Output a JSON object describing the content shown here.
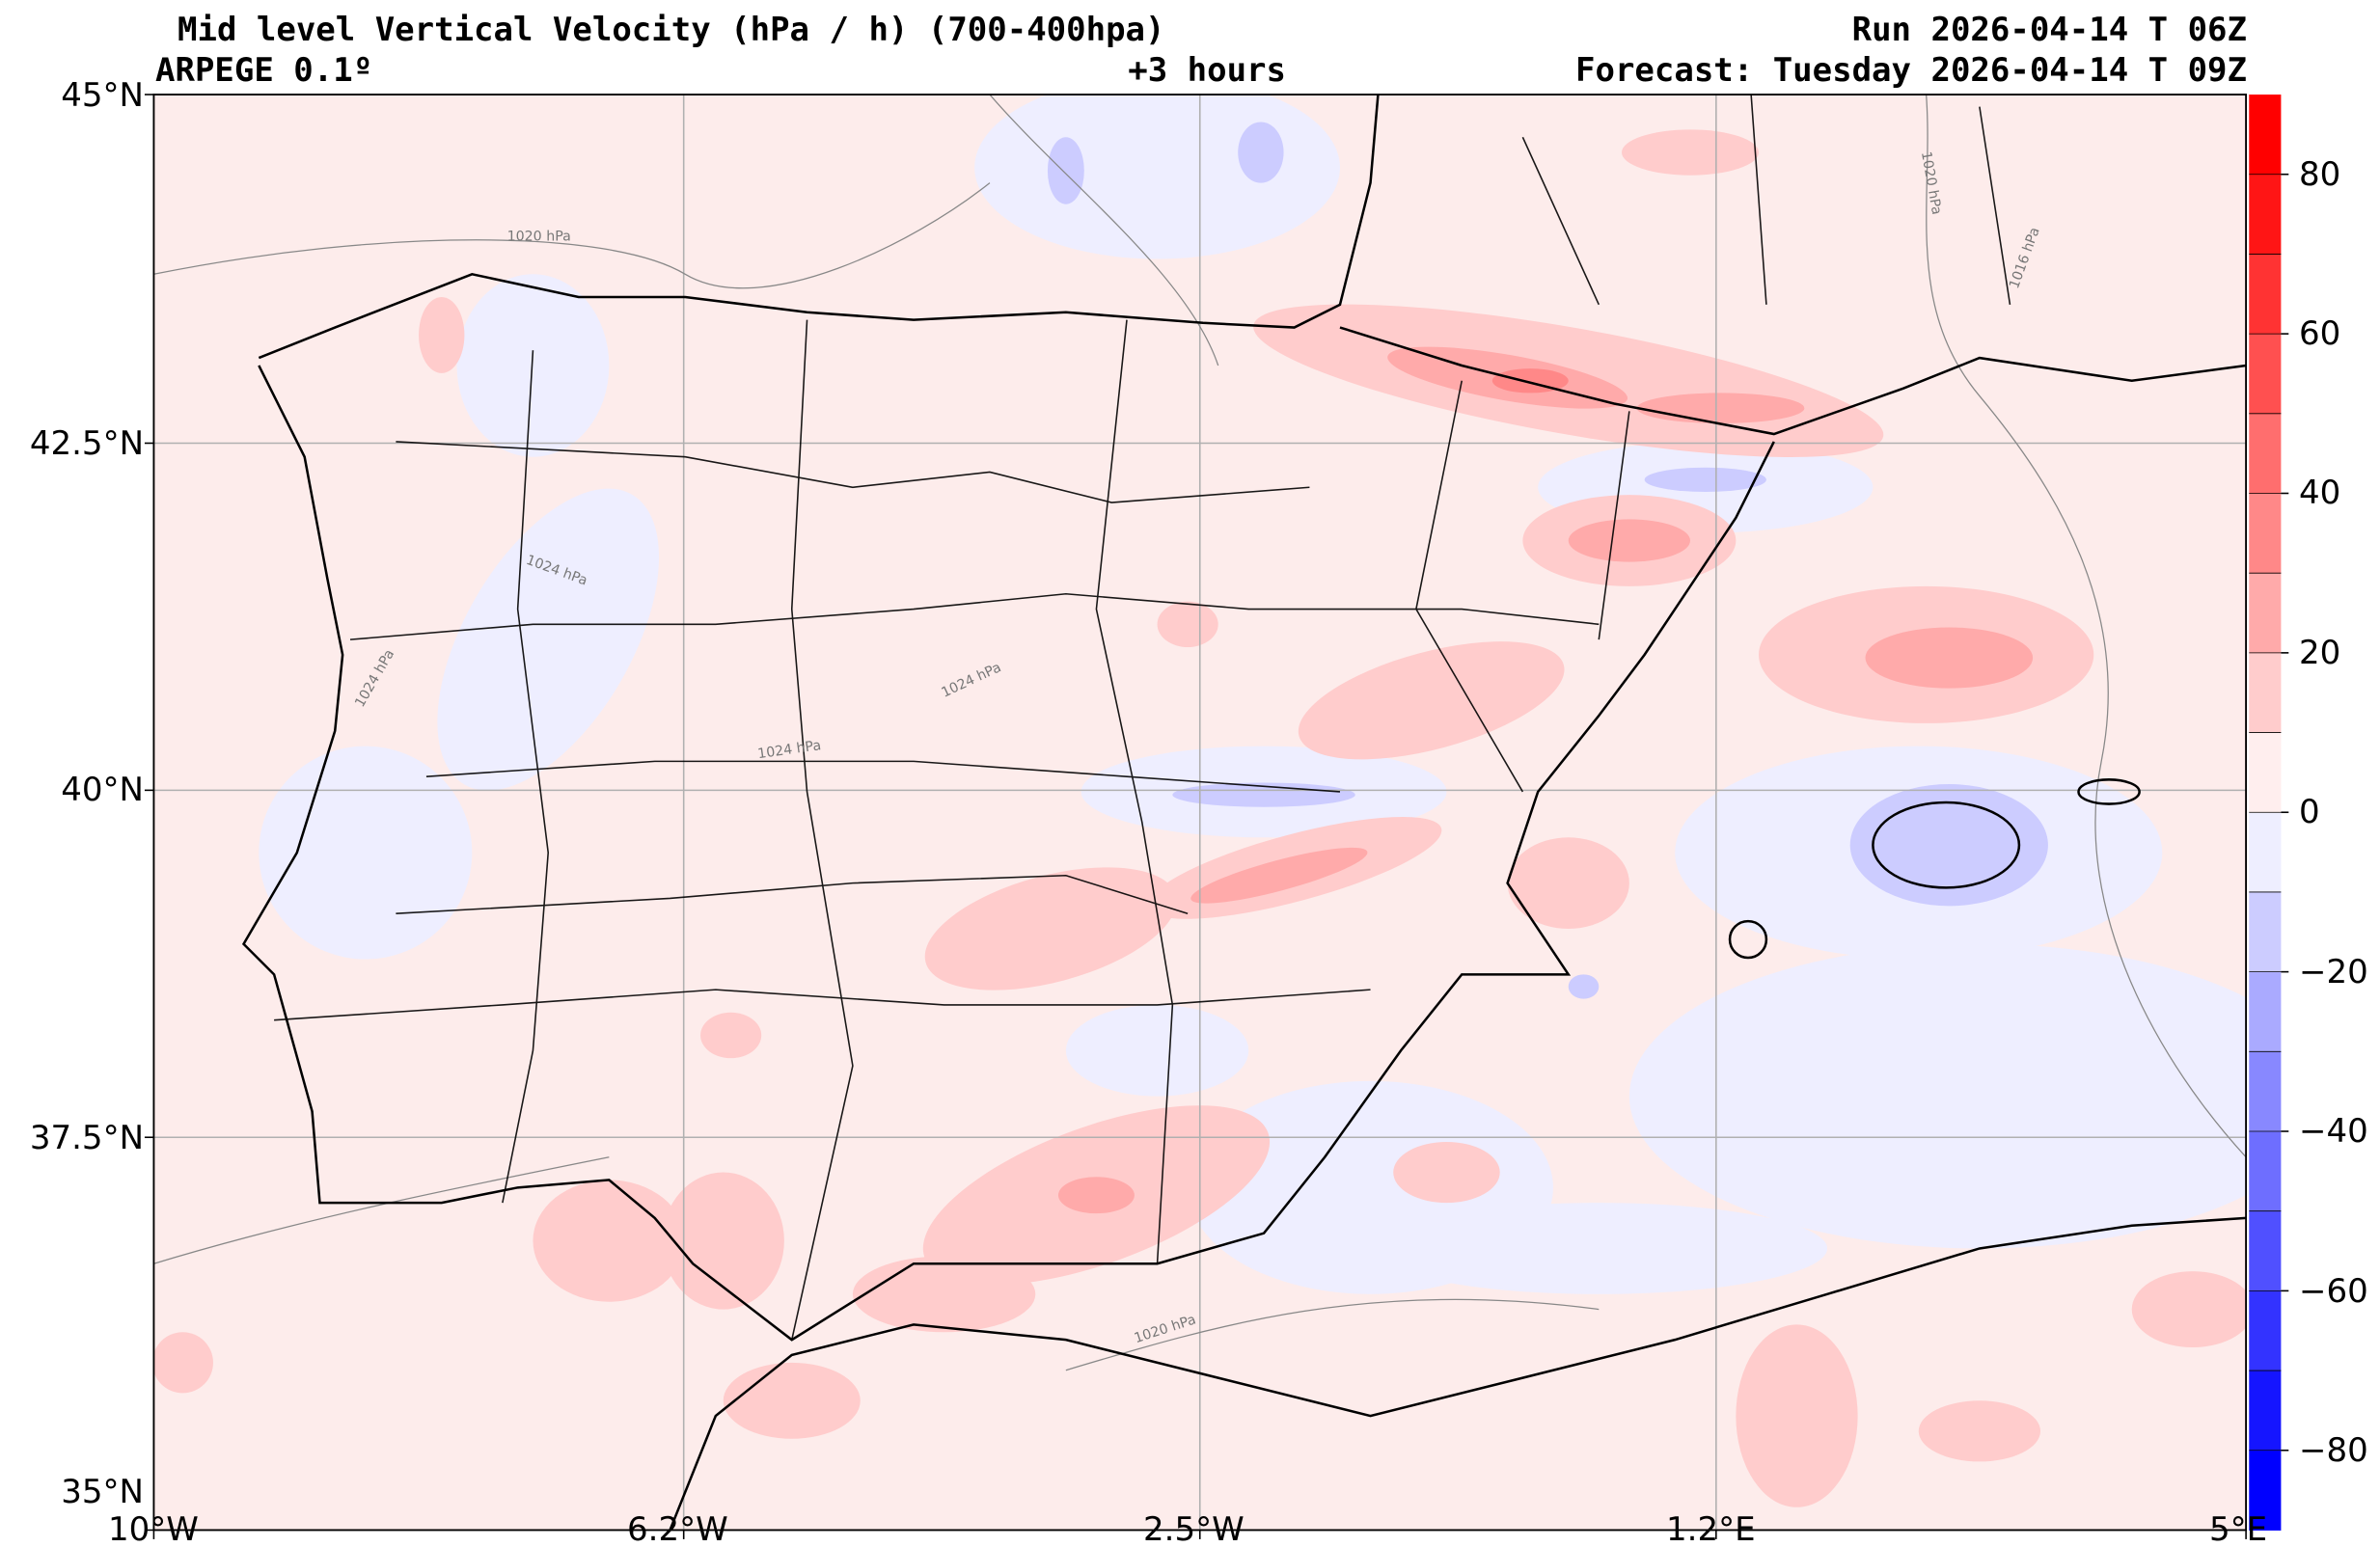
{
  "header": {
    "title": "Mid level Vertical Velocity (hPa / h)  (700-400hpa)",
    "model": "ARPEGE 0.1º",
    "lead": "+3 hours",
    "run": "Run 2026-04-14 T 06Z",
    "forecast": "Forecast: Tuesday 2026-04-14 T 09Z"
  },
  "axes": {
    "lat_labels": [
      "45°N",
      "42.5°N",
      "40°N",
      "37.5°N",
      "35°N"
    ],
    "lon_labels": [
      "10°W",
      "6.2°W",
      "2.5°W",
      "1.2°E",
      "5°E"
    ]
  },
  "isobar_labels": [
    "1020 hPa",
    "1024 hPa",
    "1024 hPa",
    "1024 hPa",
    "1024 hPa",
    "1020 hPa",
    "1020 hPa",
    "1016 hPa"
  ],
  "colorbar": {
    "min": -90,
    "max": 90,
    "step": 10,
    "tick_labels": [
      "80",
      "60",
      "40",
      "20",
      "0",
      "−20",
      "−40",
      "−60",
      "−80"
    ],
    "tick_values": [
      80,
      60,
      40,
      20,
      0,
      -20,
      -40,
      -60,
      -80
    ],
    "colors": [
      "#0000ff",
      "#1515ff",
      "#3333ff",
      "#5050ff",
      "#6e6eff",
      "#8888ff",
      "#aaaaff",
      "#ccccff",
      "#eeeeff",
      "#ffeeee",
      "#ffcccc",
      "#ffaaaa",
      "#ff8888",
      "#ff6e6e",
      "#ff5050",
      "#ff3333",
      "#ff1515",
      "#ff0000"
    ]
  },
  "colors": {
    "background": "#fdeceb",
    "neg_light": "#eeeeff",
    "pos_light": "#ffcccc"
  }
}
